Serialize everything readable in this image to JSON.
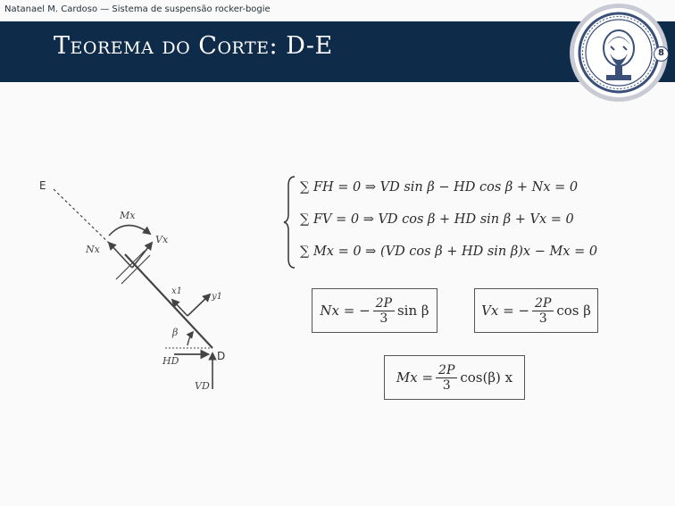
{
  "header": {
    "author_line": "Natanael M. Cardoso — Sistema de suspensão rocker-bogie",
    "title": "Teorema do Corte: D-E",
    "page_number": "8",
    "logo_icon": "university-seal-icon"
  },
  "diagram": {
    "label_E": "E",
    "label_D": "D",
    "label_Mx": "Mx",
    "label_Vx": "Vx",
    "label_Nx": "Nx",
    "label_x1": "x1",
    "label_y1": "y1",
    "label_beta": "β",
    "label_HD": "HD",
    "label_VD": "VD"
  },
  "equations": {
    "eq1": "∑ FH = 0  ⇒  VD sin β − HD cos β + Nx = 0",
    "eq2": "∑ FV = 0  ⇒  VD cos β + HD sin β + Vx = 0",
    "eq3": "∑ Mx = 0  ⇒  (VD cos β + HD sin β)x − Mx = 0"
  },
  "results": {
    "nx_lhs": "Nx = −",
    "vx_lhs": "Vx = −",
    "mx_lhs": "Mx =",
    "frac_num": "2P",
    "frac_den": "3",
    "nx_rhs": "sin β",
    "vx_rhs": "cos β",
    "mx_rhs": "cos(β) x"
  },
  "colors": {
    "title_bar": "#0f2b4a",
    "text": "#2a2a2a",
    "seal_ring": "#3a5078"
  }
}
